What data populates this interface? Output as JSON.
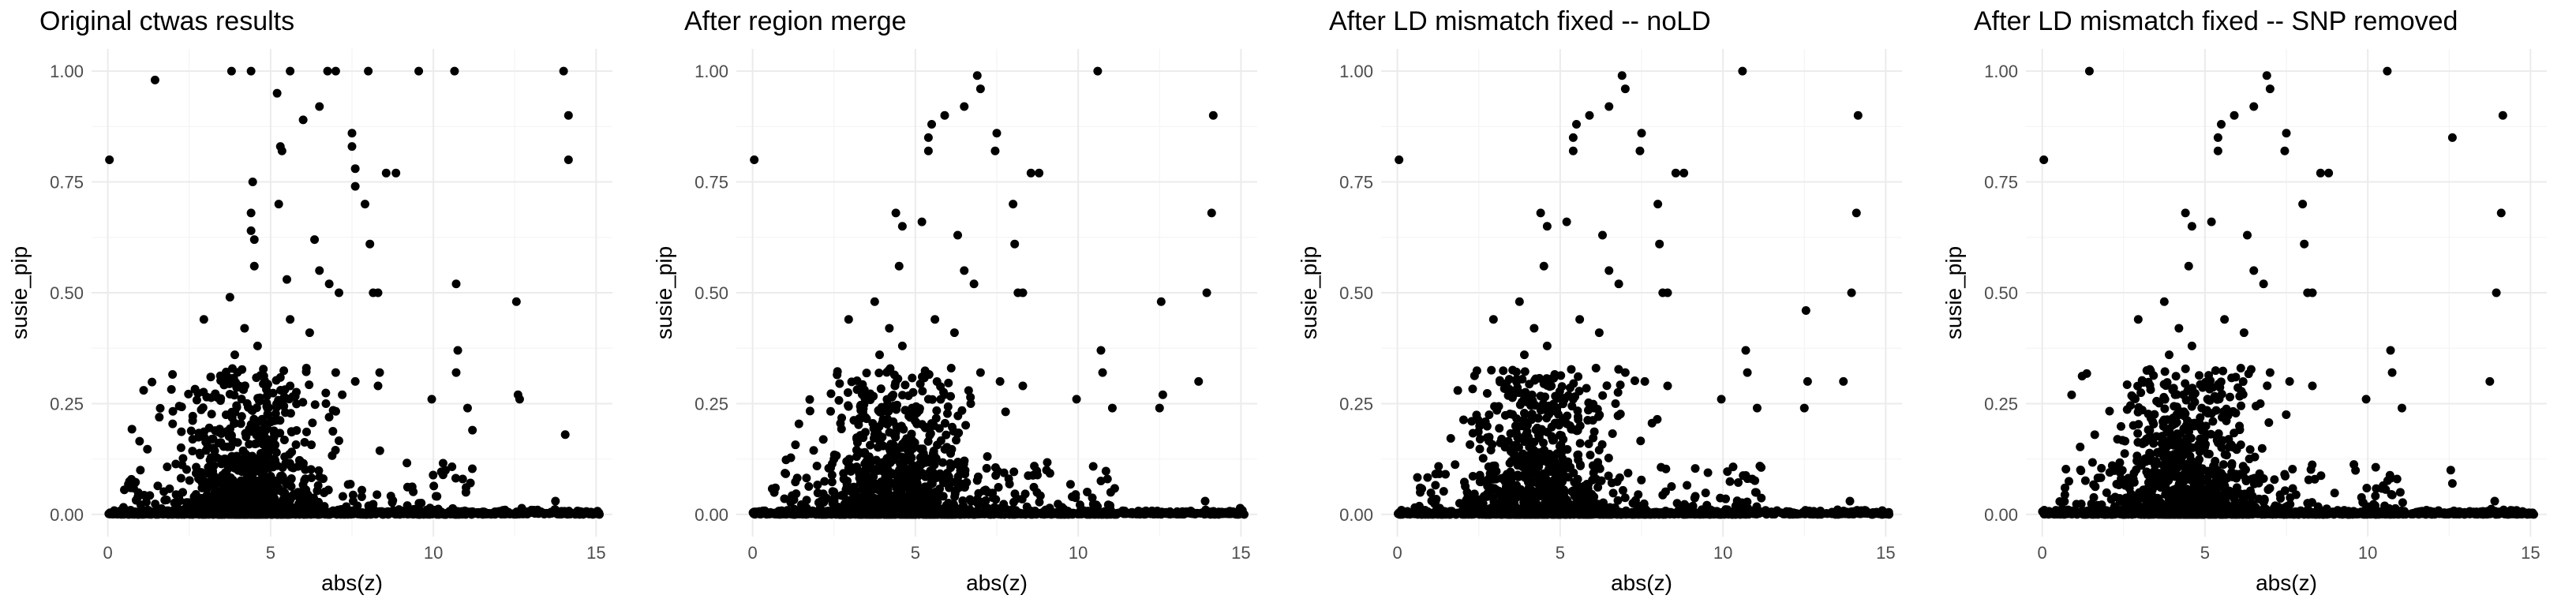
{
  "chart_data": [
    {
      "type": "scatter",
      "title": "Original ctwas results",
      "xlabel": "abs(z)",
      "ylabel": "susie_pip",
      "xlim": [
        -0.5,
        15.5
      ],
      "ylim": [
        -0.05,
        1.05
      ],
      "x_ticks": [
        "0",
        "5",
        "10",
        "15"
      ],
      "y_ticks": [
        "0.00",
        "0.25",
        "0.50",
        "0.75",
        "1.00"
      ],
      "grid": true,
      "points": [
        [
          0.05,
          0.8
        ],
        [
          1.45,
          0.98
        ],
        [
          3.8,
          1.0
        ],
        [
          4.4,
          1.0
        ],
        [
          5.6,
          1.0
        ],
        [
          6.75,
          1.0
        ],
        [
          7.0,
          1.0
        ],
        [
          8.0,
          1.0
        ],
        [
          9.55,
          1.0
        ],
        [
          10.65,
          1.0
        ],
        [
          14.0,
          1.0
        ],
        [
          14.15,
          0.9
        ],
        [
          14.15,
          0.8
        ],
        [
          5.2,
          0.95
        ],
        [
          5.3,
          0.83
        ],
        [
          5.35,
          0.82
        ],
        [
          6.0,
          0.89
        ],
        [
          6.5,
          0.92
        ],
        [
          7.5,
          0.86
        ],
        [
          7.5,
          0.83
        ],
        [
          7.6,
          0.78
        ],
        [
          8.55,
          0.77
        ],
        [
          8.85,
          0.77
        ],
        [
          7.6,
          0.74
        ],
        [
          4.45,
          0.75
        ],
        [
          5.25,
          0.7
        ],
        [
          4.4,
          0.68
        ],
        [
          4.4,
          0.64
        ],
        [
          4.5,
          0.62
        ],
        [
          6.35,
          0.62
        ],
        [
          7.9,
          0.7
        ],
        [
          8.05,
          0.61
        ],
        [
          1.1,
          0.28
        ],
        [
          2.95,
          0.44
        ],
        [
          3.75,
          0.49
        ],
        [
          8.15,
          0.5
        ],
        [
          8.3,
          0.5
        ],
        [
          9.95,
          0.26
        ],
        [
          10.7,
          0.52
        ],
        [
          10.75,
          0.37
        ],
        [
          10.7,
          0.32
        ],
        [
          11.05,
          0.24
        ],
        [
          11.2,
          0.19
        ],
        [
          12.55,
          0.48
        ],
        [
          12.65,
          0.26
        ],
        [
          12.6,
          0.27
        ],
        [
          14.05,
          0.18
        ],
        [
          13.75,
          0.03
        ],
        [
          4.5,
          0.56
        ],
        [
          5.5,
          0.53
        ],
        [
          6.5,
          0.55
        ],
        [
          6.8,
          0.52
        ],
        [
          7.1,
          0.5
        ],
        [
          5.6,
          0.44
        ],
        [
          6.2,
          0.41
        ],
        [
          4.2,
          0.42
        ],
        [
          4.6,
          0.38
        ],
        [
          3.9,
          0.36
        ],
        [
          6.1,
          0.33
        ],
        [
          7.0,
          0.32
        ],
        [
          7.6,
          0.3
        ],
        [
          8.3,
          0.29
        ],
        [
          8.35,
          0.32
        ],
        [
          5.6,
          0.29
        ],
        [
          5.4,
          0.26
        ],
        [
          4.9,
          0.24
        ],
        [
          6.7,
          0.25
        ],
        [
          7.2,
          0.27
        ],
        [
          3.2,
          0.17
        ],
        [
          3.5,
          0.12
        ],
        [
          2.8,
          0.08
        ],
        [
          2.3,
          0.05
        ],
        [
          1.0,
          0.1
        ],
        [
          0.7,
          0.06
        ],
        [
          9.2,
          0.02
        ],
        [
          9.8,
          0.01
        ],
        [
          12.2,
          0.01
        ],
        [
          13.2,
          0.01
        ],
        [
          14.9,
          0.0
        ],
        [
          15.1,
          0.0
        ],
        [
          10.9,
          0.08
        ],
        [
          11.0,
          0.05
        ]
      ]
    },
    {
      "type": "scatter",
      "title": "After region merge",
      "xlabel": "abs(z)",
      "ylabel": "susie_pip",
      "xlim": [
        -0.5,
        15.5
      ],
      "ylim": [
        -0.05,
        1.05
      ],
      "x_ticks": [
        "0",
        "5",
        "10",
        "15"
      ],
      "y_ticks": [
        "0.00",
        "0.25",
        "0.50",
        "0.75",
        "1.00"
      ],
      "grid": true,
      "points": [
        [
          0.05,
          0.8
        ],
        [
          10.6,
          1.0
        ],
        [
          6.9,
          0.99
        ],
        [
          7.0,
          0.96
        ],
        [
          6.5,
          0.92
        ],
        [
          5.9,
          0.9
        ],
        [
          5.5,
          0.88
        ],
        [
          5.4,
          0.85
        ],
        [
          7.5,
          0.86
        ],
        [
          7.45,
          0.82
        ],
        [
          5.4,
          0.82
        ],
        [
          8.55,
          0.77
        ],
        [
          8.8,
          0.77
        ],
        [
          14.15,
          0.9
        ],
        [
          14.1,
          0.68
        ],
        [
          4.4,
          0.68
        ],
        [
          4.6,
          0.65
        ],
        [
          5.2,
          0.66
        ],
        [
          6.3,
          0.63
        ],
        [
          8.0,
          0.7
        ],
        [
          8.05,
          0.61
        ],
        [
          4.5,
          0.56
        ],
        [
          6.5,
          0.55
        ],
        [
          6.8,
          0.52
        ],
        [
          2.95,
          0.44
        ],
        [
          3.75,
          0.48
        ],
        [
          8.15,
          0.5
        ],
        [
          8.3,
          0.5
        ],
        [
          13.95,
          0.5
        ],
        [
          13.7,
          0.3
        ],
        [
          12.55,
          0.48
        ],
        [
          12.6,
          0.27
        ],
        [
          12.5,
          0.24
        ],
        [
          9.95,
          0.26
        ],
        [
          10.7,
          0.37
        ],
        [
          10.75,
          0.32
        ],
        [
          11.05,
          0.24
        ],
        [
          5.6,
          0.44
        ],
        [
          6.2,
          0.41
        ],
        [
          4.2,
          0.42
        ],
        [
          4.6,
          0.38
        ],
        [
          3.9,
          0.36
        ],
        [
          6.1,
          0.33
        ],
        [
          7.0,
          0.32
        ],
        [
          7.6,
          0.3
        ],
        [
          8.3,
          0.29
        ],
        [
          5.4,
          0.26
        ],
        [
          4.9,
          0.24
        ],
        [
          6.7,
          0.25
        ],
        [
          3.2,
          0.17
        ],
        [
          3.5,
          0.12
        ],
        [
          2.8,
          0.08
        ],
        [
          0.7,
          0.06
        ],
        [
          13.9,
          0.03
        ],
        [
          14.9,
          0.0
        ],
        [
          15.1,
          0.0
        ],
        [
          10.9,
          0.08
        ],
        [
          11.0,
          0.05
        ]
      ]
    },
    {
      "type": "scatter",
      "title": "After LD mismatch fixed -- noLD",
      "xlabel": "abs(z)",
      "ylabel": "susie_pip",
      "xlim": [
        -0.5,
        15.5
      ],
      "ylim": [
        -0.05,
        1.05
      ],
      "x_ticks": [
        "0",
        "5",
        "10",
        "15"
      ],
      "y_ticks": [
        "0.00",
        "0.25",
        "0.50",
        "0.75",
        "1.00"
      ],
      "grid": true,
      "points": [
        [
          0.05,
          0.8
        ],
        [
          10.6,
          1.0
        ],
        [
          6.9,
          0.99
        ],
        [
          7.0,
          0.96
        ],
        [
          6.5,
          0.92
        ],
        [
          5.9,
          0.9
        ],
        [
          5.5,
          0.88
        ],
        [
          5.4,
          0.85
        ],
        [
          7.5,
          0.86
        ],
        [
          7.45,
          0.82
        ],
        [
          5.4,
          0.82
        ],
        [
          8.55,
          0.77
        ],
        [
          8.8,
          0.77
        ],
        [
          14.15,
          0.9
        ],
        [
          14.1,
          0.68
        ],
        [
          4.4,
          0.68
        ],
        [
          4.6,
          0.65
        ],
        [
          5.2,
          0.66
        ],
        [
          6.3,
          0.63
        ],
        [
          8.0,
          0.7
        ],
        [
          8.05,
          0.61
        ],
        [
          4.5,
          0.56
        ],
        [
          6.5,
          0.55
        ],
        [
          6.8,
          0.52
        ],
        [
          2.95,
          0.44
        ],
        [
          3.75,
          0.48
        ],
        [
          8.15,
          0.5
        ],
        [
          8.3,
          0.5
        ],
        [
          13.95,
          0.5
        ],
        [
          13.7,
          0.3
        ],
        [
          12.55,
          0.46
        ],
        [
          12.6,
          0.3
        ],
        [
          12.5,
          0.24
        ],
        [
          9.95,
          0.26
        ],
        [
          10.7,
          0.37
        ],
        [
          10.75,
          0.32
        ],
        [
          11.05,
          0.24
        ],
        [
          5.6,
          0.44
        ],
        [
          6.2,
          0.41
        ],
        [
          4.2,
          0.42
        ],
        [
          4.6,
          0.38
        ],
        [
          3.9,
          0.36
        ],
        [
          6.1,
          0.33
        ],
        [
          7.0,
          0.32
        ],
        [
          7.6,
          0.3
        ],
        [
          8.3,
          0.29
        ],
        [
          5.4,
          0.26
        ],
        [
          4.9,
          0.24
        ],
        [
          6.7,
          0.25
        ],
        [
          3.2,
          0.17
        ],
        [
          3.5,
          0.12
        ],
        [
          2.8,
          0.08
        ],
        [
          0.7,
          0.06
        ],
        [
          13.9,
          0.03
        ],
        [
          14.9,
          0.0
        ],
        [
          15.1,
          0.0
        ],
        [
          10.9,
          0.08
        ],
        [
          11.0,
          0.05
        ]
      ]
    },
    {
      "type": "scatter",
      "title": "After LD mismatch fixed -- SNP removed",
      "xlabel": "abs(z)",
      "ylabel": "susie_pip",
      "xlim": [
        -0.5,
        15.5
      ],
      "ylim": [
        -0.05,
        1.05
      ],
      "x_ticks": [
        "0",
        "5",
        "10",
        "15"
      ],
      "y_ticks": [
        "0.00",
        "0.25",
        "0.50",
        "0.75",
        "1.00"
      ],
      "grid": true,
      "points": [
        [
          0.05,
          0.8
        ],
        [
          1.45,
          1.0
        ],
        [
          10.6,
          1.0
        ],
        [
          6.9,
          0.99
        ],
        [
          7.0,
          0.96
        ],
        [
          6.5,
          0.92
        ],
        [
          5.9,
          0.9
        ],
        [
          5.5,
          0.88
        ],
        [
          5.4,
          0.85
        ],
        [
          7.5,
          0.86
        ],
        [
          7.45,
          0.82
        ],
        [
          5.4,
          0.82
        ],
        [
          8.55,
          0.77
        ],
        [
          8.8,
          0.77
        ],
        [
          14.15,
          0.9
        ],
        [
          14.1,
          0.68
        ],
        [
          12.6,
          0.85
        ],
        [
          4.4,
          0.68
        ],
        [
          4.6,
          0.65
        ],
        [
          5.2,
          0.66
        ],
        [
          6.3,
          0.63
        ],
        [
          8.0,
          0.7
        ],
        [
          8.05,
          0.61
        ],
        [
          4.5,
          0.56
        ],
        [
          6.5,
          0.55
        ],
        [
          6.8,
          0.52
        ],
        [
          2.95,
          0.44
        ],
        [
          3.75,
          0.48
        ],
        [
          8.15,
          0.5
        ],
        [
          8.3,
          0.5
        ],
        [
          13.95,
          0.5
        ],
        [
          13.75,
          0.3
        ],
        [
          12.55,
          0.1
        ],
        [
          12.6,
          0.07
        ],
        [
          9.95,
          0.26
        ],
        [
          10.7,
          0.37
        ],
        [
          10.75,
          0.32
        ],
        [
          11.05,
          0.24
        ],
        [
          5.6,
          0.44
        ],
        [
          6.2,
          0.41
        ],
        [
          4.2,
          0.42
        ],
        [
          4.6,
          0.38
        ],
        [
          3.9,
          0.36
        ],
        [
          6.1,
          0.33
        ],
        [
          7.0,
          0.32
        ],
        [
          7.6,
          0.3
        ],
        [
          8.3,
          0.29
        ],
        [
          5.4,
          0.26
        ],
        [
          4.9,
          0.24
        ],
        [
          6.7,
          0.25
        ],
        [
          3.2,
          0.17
        ],
        [
          3.5,
          0.12
        ],
        [
          2.8,
          0.08
        ],
        [
          0.7,
          0.06
        ],
        [
          13.9,
          0.03
        ],
        [
          14.9,
          0.0
        ],
        [
          15.1,
          0.0
        ],
        [
          10.9,
          0.08
        ],
        [
          11.0,
          0.05
        ]
      ]
    }
  ]
}
